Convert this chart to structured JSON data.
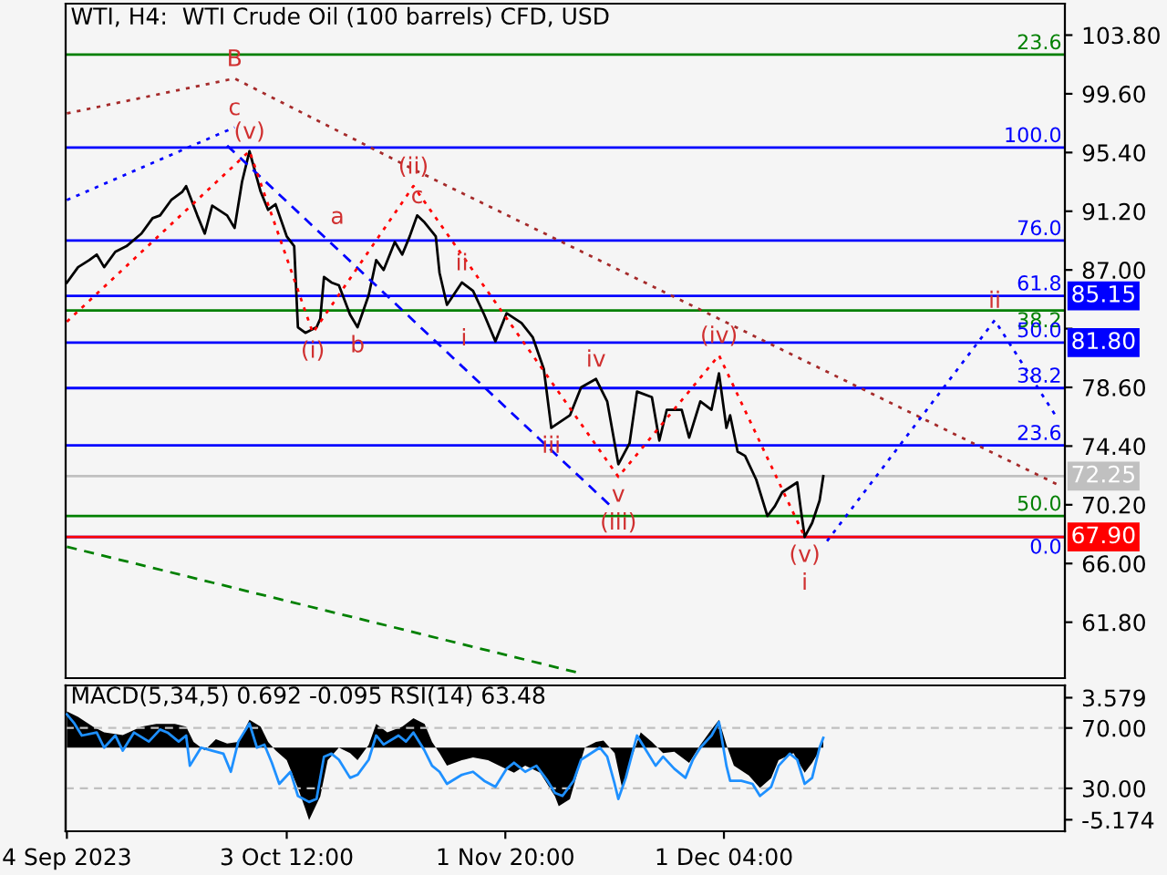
{
  "chart_data": [
    {
      "type": "line",
      "title": "WTI, H4:  WTI Crude Oil (100 barrels) CFD, USD",
      "xlim": [
        "2023-09-03T20:00",
        "2024-01-15T22:00"
      ],
      "ylim": [
        57.8,
        106.05
      ],
      "yticks": [
        {
          "value": 103.8,
          "label": "103.80"
        },
        {
          "value": 99.6,
          "label": "99.60"
        },
        {
          "value": 95.4,
          "label": "95.40"
        },
        {
          "value": 91.2,
          "label": "91.20"
        },
        {
          "value": 87.0,
          "label": "87.00"
        },
        {
          "value": 82.8,
          "label": null
        },
        {
          "value": 78.6,
          "label": "78.60"
        },
        {
          "value": 74.4,
          "label": "74.40"
        },
        {
          "value": 70.2,
          "label": "70.20"
        },
        {
          "value": 66.0,
          "label": "66.00"
        },
        {
          "value": 61.8,
          "label": "61.80"
        }
      ],
      "tick_labels": "y",
      "series": [
        {
          "color": "#000000",
          "line_style": "solid",
          "x": [
            "2023-09-04T00:00",
            "2023-09-05T12:00",
            "2023-09-07T00:00",
            "2023-09-08T00:00",
            "2023-09-09T00:00",
            "2023-09-10T12:00",
            "2023-09-12T00:00",
            "2023-09-14T00:00",
            "2023-09-15T12:00",
            "2023-09-16T12:00",
            "2023-09-18T00:00",
            "2023-09-19T12:00",
            "2023-09-20T00:00",
            "2023-09-21T12:00",
            "2023-09-22T12:00",
            "2023-09-23T12:00",
            "2023-09-25T12:00",
            "2023-09-26T12:00",
            "2023-09-27T12:00",
            "2023-09-28T12:00",
            "2023-09-30T00:00",
            "2023-10-01T00:00",
            "2023-10-02T00:00",
            "2023-10-03T12:00",
            "2023-10-04T12:00",
            "2023-10-05T00:00",
            "2023-10-06T00:00",
            "2023-10-07T12:00",
            "2023-10-08T00:00",
            "2023-10-08T12:00",
            "2023-10-09T12:00",
            "2023-10-10T12:00",
            "2023-10-12T00:00",
            "2023-10-13T00:00",
            "2023-10-14T12:00",
            "2023-10-15T12:00",
            "2023-10-16T12:00",
            "2023-10-18T00:00",
            "2023-10-19T00:00",
            "2023-10-20T00:00",
            "2023-10-21T00:00",
            "2023-10-22T00:00",
            "2023-10-23T12:00",
            "2023-10-24T00:00",
            "2023-10-25T00:00",
            "2023-10-27T00:00",
            "2023-10-28T12:00",
            "2023-10-30T00:00",
            "2023-10-31T12:00",
            "2023-11-02T00:00",
            "2023-11-04T00:00",
            "2023-11-05T12:00",
            "2023-11-07T00:00",
            "2023-11-08T00:00",
            "2023-11-10T12:00",
            "2023-11-12T00:00",
            "2023-11-14T00:00",
            "2023-11-15T12:00",
            "2023-11-17T00:00",
            "2023-11-18T12:00",
            "2023-11-19T12:00",
            "2023-11-21T12:00",
            "2023-11-22T12:00",
            "2023-11-23T12:00",
            "2023-11-25T12:00",
            "2023-11-26T12:00",
            "2023-11-28T00:00",
            "2023-11-29T12:00",
            "2023-11-30T12:00",
            "2023-12-01T12:00",
            "2023-12-02T00:00",
            "2023-12-03T00:00",
            "2023-12-04T00:00",
            "2023-12-05T12:00",
            "2023-12-07T00:00",
            "2023-12-08T00:00",
            "2023-12-09T00:00",
            "2023-12-11T00:00",
            "2023-12-11T12:00",
            "2023-12-12T00:00",
            "2023-12-13T00:00",
            "2023-12-14T00:00",
            "2023-12-14T12:00"
          ],
          "values": [
            86.1,
            87.2,
            87.7,
            88.1,
            87.2,
            88.3,
            88.7,
            89.6,
            90.7,
            90.9,
            92.0,
            92.6,
            93.0,
            90.9,
            89.6,
            91.6,
            90.9,
            90.0,
            93.3,
            95.5,
            92.6,
            91.3,
            91.7,
            89.4,
            88.7,
            82.9,
            82.5,
            82.9,
            83.5,
            86.5,
            86.1,
            85.9,
            83.8,
            82.9,
            85.2,
            87.7,
            87.0,
            89.0,
            88.1,
            89.4,
            90.9,
            90.4,
            89.4,
            86.8,
            84.5,
            86.1,
            85.5,
            83.8,
            81.9,
            83.9,
            83.2,
            82.2,
            79.9,
            75.7,
            76.6,
            78.6,
            79.2,
            77.6,
            73.1,
            74.6,
            78.3,
            77.9,
            74.8,
            77.0,
            77.0,
            75.0,
            77.6,
            77.0,
            79.6,
            75.7,
            76.6,
            74.0,
            73.7,
            72.0,
            69.4,
            70.1,
            71.1,
            71.8,
            69.8,
            67.9,
            68.9,
            70.5,
            72.25
          ]
        },
        {
          "color": "#a52a2a",
          "line_style": "dotted",
          "x": [
            "2023-09-04T00:00",
            "2023-09-26T12:00",
            "2023-10-20T12:00",
            "2024-01-15T12:00"
          ],
          "values": [
            98.2,
            100.7,
            94.2,
            71.5
          ]
        },
        {
          "color": "#0000ff",
          "line_style": "dotted",
          "x": [
            "2023-09-04T00:00",
            "2023-09-26T12:00"
          ],
          "values": [
            92.0,
            97.2
          ]
        },
        {
          "color": "#0000ff",
          "line_style": "dashed",
          "x": [
            "2023-09-25T12:00",
            "2023-11-16T00:00"
          ],
          "values": [
            95.9,
            70.1
          ]
        },
        {
          "color": "#ff0000",
          "line_style": "dotted",
          "x": [
            "2023-09-04T00:00",
            "2023-09-28T12:00",
            "2023-10-07T00:00",
            "2023-10-20T12:00",
            "2023-11-17T00:00",
            "2023-11-30T12:00",
            "2023-12-12T00:00"
          ],
          "values": [
            83.3,
            95.5,
            82.5,
            93.0,
            72.2,
            80.9,
            67.9
          ]
        },
        {
          "color": "#0000ff",
          "line_style": "dotted",
          "x": [
            "2023-12-15T00:00",
            "2024-01-06T12:00",
            "2024-01-15T00:00"
          ],
          "values": [
            67.6,
            83.4,
            76.3
          ]
        },
        {
          "color": "#008000",
          "line_style": "dashed",
          "x": [
            "2023-09-04T00:00",
            "2023-11-11T12:00"
          ],
          "values": [
            67.2,
            58.2
          ]
        }
      ],
      "ref_lines": [
        {
          "axis": "y",
          "value": 102.4,
          "color": "#008000"
        },
        {
          "axis": "y",
          "value": 95.75,
          "color": "#0000ff"
        },
        {
          "axis": "y",
          "value": 89.1,
          "color": "#0000ff"
        },
        {
          "axis": "y",
          "value": 85.15,
          "label": "85.15",
          "color": "#0000ff"
        },
        {
          "axis": "y",
          "value": 84.1,
          "color": "#008000"
        },
        {
          "axis": "y",
          "value": 81.8,
          "label": "81.80",
          "color": "#0000ff"
        },
        {
          "axis": "y",
          "value": 78.55,
          "color": "#0000ff"
        },
        {
          "axis": "y",
          "value": 74.45,
          "color": "#0000ff"
        },
        {
          "axis": "y",
          "value": 72.25,
          "label": "72.25",
          "color": "#c0c0c0"
        },
        {
          "axis": "y",
          "value": 69.4,
          "color": "#008000"
        },
        {
          "axis": "y",
          "value": 67.9,
          "color": "#0000ff"
        },
        {
          "axis": "y",
          "value": 67.9,
          "label": "67.90",
          "color": "#ff0000"
        }
      ],
      "annotations": [
        {
          "text": "23.6",
          "x": "2024-01-15T12:00",
          "y": 102.4
        },
        {
          "text": "100.0",
          "x": "2024-01-15T12:00",
          "y": 95.75
        },
        {
          "text": "76.0",
          "x": "2024-01-15T12:00",
          "y": 89.1
        },
        {
          "text": "61.8",
          "x": "2024-01-15T12:00",
          "y": 85.15
        },
        {
          "text": "38.2",
          "x": "2024-01-15T12:00",
          "y": 84.1
        },
        {
          "text": "50.0",
          "x": "2024-01-15T12:00",
          "y": 81.8
        },
        {
          "text": "38.2",
          "x": "2024-01-15T12:00",
          "y": 78.55
        },
        {
          "text": "23.6",
          "x": "2024-01-15T12:00",
          "y": 74.45
        },
        {
          "text": "50.0",
          "x": "2024-01-15T12:00",
          "y": 69.4
        },
        {
          "text": "0.0",
          "x": "2024-01-15T12:00",
          "y": 67.9
        },
        {
          "text": "B",
          "x": "2023-09-26T12:00",
          "y": 100.7
        },
        {
          "text": "c",
          "x": "2023-09-26T12:00",
          "y": 97.2
        },
        {
          "text": "(v)",
          "x": "2023-09-28T12:00",
          "y": 95.5
        },
        {
          "text": "(ii)",
          "x": "2023-10-20T12:00",
          "y": 93.0
        },
        {
          "text": "c",
          "x": "2023-10-21T00:00",
          "y": 90.9
        },
        {
          "text": "a",
          "x": "2023-10-08T00:00",
          "y": 89.6
        },
        {
          "text": "ii",
          "x": "2023-10-27T00:00",
          "y": 86.1
        },
        {
          "text": "(i)",
          "x": "2023-10-07T00:00",
          "y": 82.5
        },
        {
          "text": "b",
          "x": "2023-10-13T00:00",
          "y": 82.9
        },
        {
          "text": "i",
          "x": "2023-10-25T12:00",
          "y": 80.9
        },
        {
          "text": "iv",
          "x": "2023-11-14T00:00",
          "y": 79.2
        },
        {
          "text": "(iv)",
          "x": "2023-11-30T12:00",
          "y": 80.9
        },
        {
          "text": "iii",
          "x": "2023-11-08T00:00",
          "y": 75.7
        },
        {
          "text": "v",
          "x": "2023-11-17T00:00",
          "y": 72.2
        },
        {
          "text": "(iii)",
          "x": "2023-11-17T00:00",
          "y": 72.2
        },
        {
          "text": "(v)",
          "x": "2023-12-12T00:00",
          "y": 67.9
        },
        {
          "text": "i",
          "x": "2023-12-12T00:00",
          "y": 67.9
        },
        {
          "text": "ii",
          "x": "2024-01-06T12:00",
          "y": 83.4
        }
      ]
    },
    {
      "type": "area",
      "title": "MACD(5,34,5) 0.692 -0.095 RSI(14) 63.48",
      "xlim": [
        "2023-09-03T20:00",
        "2024-01-15T22:00"
      ],
      "xticks": [
        {
          "value": "2023-09-04T00:00",
          "label": "4 Sep 2023"
        },
        {
          "value": "2023-10-03T12:00",
          "label": "3 Oct 12:00"
        },
        {
          "value": "2023-11-01T20:00",
          "label": "1 Nov 20:00"
        },
        {
          "value": "2023-12-01T04:00",
          "label": "1 Dec 04:00"
        }
      ],
      "ylim": [
        1.6,
        98.2
      ],
      "yticks": [
        {
          "value": 70,
          "label": "70.00"
        },
        {
          "value": 30,
          "label": "30.00"
        }
      ],
      "y2lim": [
        -6.0,
        4.46
      ],
      "y2ticks": [
        {
          "value": 3.579,
          "label": "3.579"
        },
        {
          "value": -5.174,
          "label": "-5.174"
        }
      ],
      "grid": "y",
      "series": [
        {
          "type": "area",
          "axis": "y2",
          "color": "#000000",
          "x": [
            "2023-09-04T00:00",
            "2023-09-05T12:00",
            "2023-09-07T12:00",
            "2023-09-09T00:00",
            "2023-09-11T12:00",
            "2023-09-14T00:00",
            "2023-09-16T00:00",
            "2023-09-18T12:00",
            "2023-09-20T00:00",
            "2023-09-21T00:00",
            "2023-09-22T12:00",
            "2023-09-24T00:00",
            "2023-09-25T12:00",
            "2023-09-27T00:00",
            "2023-09-28T12:00",
            "2023-09-30T00:00",
            "2023-10-01T00:00",
            "2023-10-02T00:00",
            "2023-10-03T12:00",
            "2023-10-05T00:00",
            "2023-10-06T00:00",
            "2023-10-06T12:00",
            "2023-10-08T00:00",
            "2023-10-09T00:00",
            "2023-10-10T12:00",
            "2023-10-12T00:00",
            "2023-10-13T00:00",
            "2023-10-14T12:00",
            "2023-10-15T12:00",
            "2023-10-17T00:00",
            "2023-10-19T00:00",
            "2023-10-20T12:00",
            "2023-10-22T00:00",
            "2023-10-23T00:00",
            "2023-10-24T00:00",
            "2023-10-25T00:00",
            "2023-10-27T00:00",
            "2023-10-28T12:00",
            "2023-10-30T12:00",
            "2023-11-01T00:00",
            "2023-11-03T00:00",
            "2023-11-04T12:00",
            "2023-11-06T12:00",
            "2023-11-08T12:00",
            "2023-11-09T00:00",
            "2023-11-10T12:00",
            "2023-11-12T00:00",
            "2023-11-12T12:00",
            "2023-11-14T00:00",
            "2023-11-15T00:00",
            "2023-11-16T12:00",
            "2023-11-17T12:00",
            "2023-11-19T00:00",
            "2023-11-20T00:00",
            "2023-11-21T12:00",
            "2023-11-23T00:00",
            "2023-11-24T12:00",
            "2023-11-26T12:00",
            "2023-11-28T00:00",
            "2023-11-29T12:00",
            "2023-11-30T12:00",
            "2023-12-01T12:00",
            "2023-12-02T12:00",
            "2023-12-04T12:00",
            "2023-12-06T00:00",
            "2023-12-07T12:00",
            "2023-12-08T12:00",
            "2023-12-10T12:00",
            "2023-12-12T00:00",
            "2023-12-13T00:00",
            "2023-12-14T00:00",
            "2023-12-14T12:00"
          ],
          "values": [
            2.6,
            2.2,
            1.5,
            1.1,
            0.9,
            1.5,
            1.7,
            1.7,
            1.5,
            0.4,
            -0.2,
            0.6,
            0.3,
            0.4,
            2.0,
            1.5,
            0.4,
            -0.2,
            -0.9,
            -2.9,
            -4.4,
            -5.2,
            -3.5,
            -0.9,
            0.0,
            -0.4,
            -0.9,
            0.2,
            1.7,
            1.1,
            1.5,
            2.1,
            1.7,
            0.4,
            -0.4,
            -1.3,
            -0.9,
            -0.7,
            -0.9,
            -1.3,
            -1.8,
            -1.3,
            -1.8,
            -3.5,
            -4.2,
            -3.7,
            -0.9,
            0.0,
            0.4,
            0.5,
            -0.4,
            -2.9,
            -0.4,
            1.1,
            0.4,
            -0.4,
            -0.3,
            -1.1,
            0.2,
            1.3,
            2.0,
            0.2,
            -1.3,
            -2.0,
            -2.9,
            -2.2,
            -0.9,
            -0.4,
            -1.8,
            -1.1,
            -0.2,
            0.692
          ]
        },
        {
          "type": "line",
          "color": "#1e90ff",
          "x": [
            "2023-09-04T00:00",
            "2023-09-05T00:00",
            "2023-09-06T00:00",
            "2023-09-08T00:00",
            "2023-09-09T00:00",
            "2023-09-10T12:00",
            "2023-09-11T12:00",
            "2023-09-13T00:00",
            "2023-09-15T00:00",
            "2023-09-16T12:00",
            "2023-09-17T12:00",
            "2023-09-19T00:00",
            "2023-09-20T00:00",
            "2023-09-20T12:00",
            "2023-09-22T00:00",
            "2023-09-23T12:00",
            "2023-09-25T00:00",
            "2023-09-26T00:00",
            "2023-09-27T00:00",
            "2023-09-28T12:00",
            "2023-09-29T12:00",
            "2023-09-30T12:00",
            "2023-10-01T12:00",
            "2023-10-02T12:00",
            "2023-10-04T00:00",
            "2023-10-05T00:00",
            "2023-10-06T12:00",
            "2023-10-07T12:00",
            "2023-10-08T12:00",
            "2023-10-09T12:00",
            "2023-10-10T12:00",
            "2023-10-12T00:00",
            "2023-10-13T00:00",
            "2023-10-14T12:00",
            "2023-10-15T12:00",
            "2023-10-16T12:00",
            "2023-10-18T12:00",
            "2023-10-19T12:00",
            "2023-10-20T12:00",
            "2023-10-22T00:00",
            "2023-10-23T00:00",
            "2023-10-24T00:00",
            "2023-10-25T00:00",
            "2023-10-27T00:00",
            "2023-10-28T12:00",
            "2023-10-30T00:00",
            "2023-10-31T12:00",
            "2023-11-02T00:00",
            "2023-11-03T00:00",
            "2023-11-04T12:00",
            "2023-11-06T00:00",
            "2023-11-07T12:00",
            "2023-11-08T12:00",
            "2023-11-09T12:00",
            "2023-11-11T00:00",
            "2023-11-12T00:00",
            "2023-11-14T12:00",
            "2023-11-15T12:00",
            "2023-11-16T12:00",
            "2023-11-17T00:00",
            "2023-11-18T00:00",
            "2023-11-19T12:00",
            "2023-11-20T12:00",
            "2023-11-22T00:00",
            "2023-11-23T00:00",
            "2023-11-24T12:00",
            "2023-11-26T00:00",
            "2023-11-27T00:00",
            "2023-11-28T00:00",
            "2023-11-29T12:00",
            "2023-11-30T12:00",
            "2023-12-01T12:00",
            "2023-12-02T00:00",
            "2023-12-03T12:00",
            "2023-12-05T00:00",
            "2023-12-06T00:00",
            "2023-12-07T12:00",
            "2023-12-08T12:00",
            "2023-12-10T00:00",
            "2023-12-11T00:00",
            "2023-12-12T00:00",
            "2023-12-13T00:00",
            "2023-12-14T00:00",
            "2023-12-14T12:00"
          ],
          "values": [
            79,
            73,
            65,
            67,
            57,
            65,
            55,
            67,
            61,
            69,
            67,
            61,
            65,
            45,
            57,
            55,
            53,
            41,
            61,
            73,
            57,
            59,
            47,
            33,
            41,
            25,
            21,
            23,
            51,
            53,
            49,
            37,
            39,
            49,
            65,
            59,
            65,
            61,
            67,
            55,
            45,
            41,
            33,
            39,
            41,
            35,
            31,
            43,
            47,
            41,
            45,
            35,
            27,
            25,
            35,
            49,
            57,
            51,
            33,
            23,
            37,
            65,
            57,
            45,
            51,
            43,
            37,
            49,
            57,
            65,
            74,
            45,
            35,
            35,
            33,
            25,
            31,
            45,
            53,
            49,
            33,
            37,
            57,
            63.48
          ]
        }
      ]
    }
  ]
}
